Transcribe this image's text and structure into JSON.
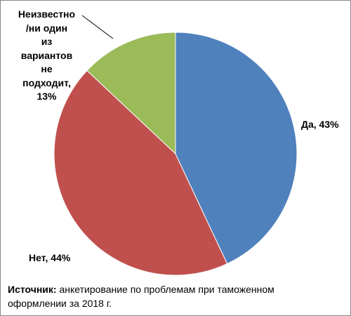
{
  "chart_data": {
    "type": "pie",
    "values": [
      43,
      44,
      13
    ],
    "value_labels": [
      "Да, 43%",
      "Нет, 44%",
      "Неизвестно\n/ни один\nиз\nвариантов\nне\nподходит,\n13%"
    ],
    "colors": [
      "#4f81bd",
      "#c0504d",
      "#9bbb59"
    ],
    "source_label": "Источник:",
    "source_text": "анкетирование по проблемам при таможенном оформлении за 2018 г."
  }
}
